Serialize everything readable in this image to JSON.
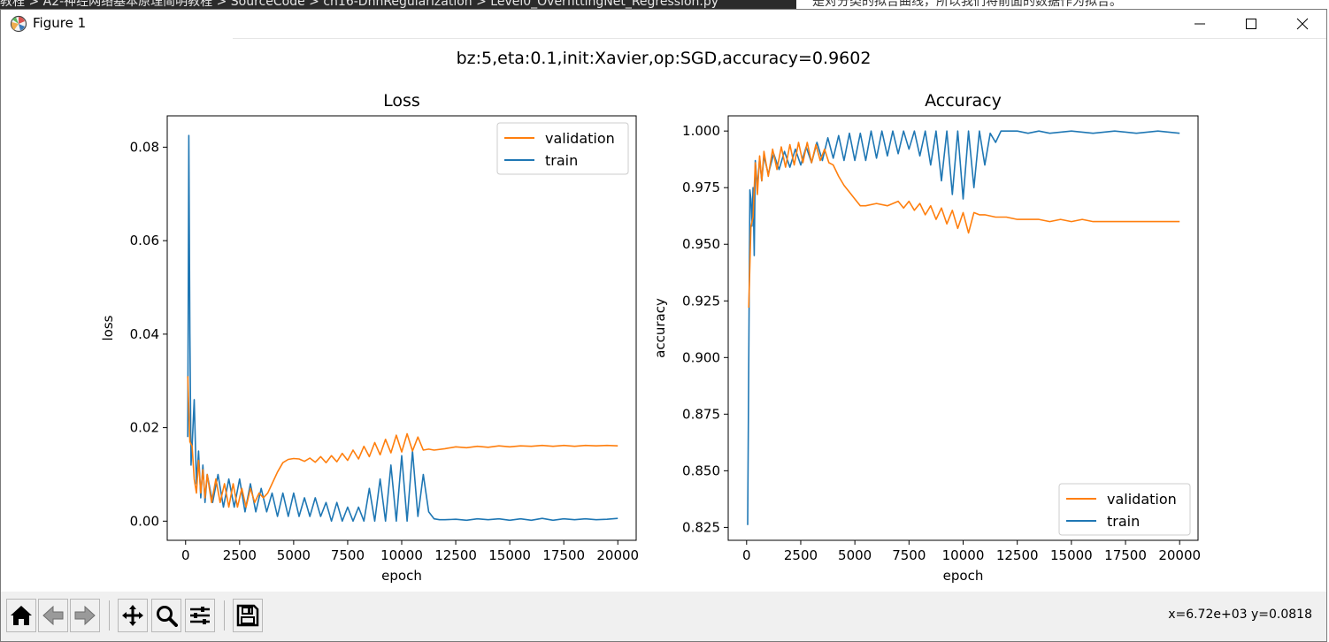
{
  "background": {
    "breadcrumb": "教程 > A2-神经网络基本原理简明教程 > SourceCode > ch16-DnnRegularization > Level0_OverfittingNet_Regression.py",
    "doc_text": "是对分类的拟合曲线，所以我们将前面的数据作为拟合。"
  },
  "window": {
    "title": "Figure 1",
    "controls": {
      "minimize": "minimize-icon",
      "maximize": "maximize-icon",
      "close": "close-icon"
    }
  },
  "figure": {
    "suptitle": "bz:5,eta:0.1,init:Xavier,op:SGD,accuracy=0.9602"
  },
  "toolbar": {
    "buttons": [
      "home-icon",
      "back-arrow-icon",
      "forward-arrow-icon",
      "pan-icon",
      "zoom-icon",
      "configure-subplots-icon",
      "save-icon"
    ],
    "coords": "x=6.72e+03 y=0.0818"
  },
  "colors": {
    "validation": "#ff7f0e",
    "train": "#1f77b4"
  },
  "chart_data": [
    {
      "type": "line",
      "title": "Loss",
      "xlabel": "epoch",
      "ylabel": "loss",
      "xlim": [
        -850,
        20850
      ],
      "ylim": [
        -0.0041,
        0.0867
      ],
      "xticks": [
        0,
        2500,
        5000,
        7500,
        10000,
        12500,
        15000,
        17500,
        20000
      ],
      "yticks": [
        0.0,
        0.02,
        0.04,
        0.06,
        0.08
      ],
      "ytick_labels": [
        "0.00",
        "0.02",
        "0.04",
        "0.06",
        "0.08"
      ],
      "legend": {
        "position": "upper right",
        "entries": [
          "validation",
          "train"
        ]
      },
      "series": [
        {
          "name": "validation",
          "x": [
            100,
            200,
            300,
            400,
            500,
            600,
            700,
            800,
            900,
            1000,
            1200,
            1400,
            1600,
            1800,
            2000,
            2200,
            2400,
            2600,
            2800,
            3000,
            3200,
            3400,
            3600,
            3800,
            4000,
            4250,
            4500,
            4750,
            5000,
            5250,
            5500,
            5750,
            6000,
            6250,
            6500,
            6750,
            7000,
            7250,
            7500,
            7750,
            8000,
            8250,
            8500,
            8750,
            9000,
            9250,
            9500,
            9750,
            10000,
            10250,
            10500,
            10750,
            11000,
            11250,
            11500,
            12000,
            12500,
            13000,
            13500,
            14000,
            14500,
            15000,
            15500,
            16000,
            16500,
            17000,
            17500,
            18000,
            18500,
            19000,
            19500,
            20000
          ],
          "y": [
            0.031,
            0.017,
            0.016,
            0.009,
            0.006,
            0.013,
            0.006,
            0.011,
            0.005,
            0.01,
            0.004,
            0.009,
            0.004,
            0.008,
            0.003,
            0.008,
            0.003,
            0.007,
            0.003,
            0.007,
            0.004,
            0.006,
            0.005,
            0.006,
            0.008,
            0.0105,
            0.0125,
            0.0132,
            0.0134,
            0.0133,
            0.0128,
            0.0135,
            0.0126,
            0.0138,
            0.0125,
            0.014,
            0.0127,
            0.0145,
            0.013,
            0.0152,
            0.0133,
            0.016,
            0.0138,
            0.0168,
            0.0142,
            0.0175,
            0.0146,
            0.0184,
            0.0148,
            0.0187,
            0.015,
            0.018,
            0.0152,
            0.0154,
            0.0152,
            0.0155,
            0.0159,
            0.0157,
            0.016,
            0.0158,
            0.0161,
            0.0159,
            0.0161,
            0.016,
            0.0162,
            0.016,
            0.0162,
            0.016,
            0.0162,
            0.0161,
            0.0162,
            0.0161
          ]
        },
        {
          "name": "train",
          "x": [
            100,
            150,
            200,
            250,
            300,
            400,
            500,
            600,
            700,
            800,
            900,
            1000,
            1250,
            1500,
            1750,
            2000,
            2250,
            2500,
            2750,
            3000,
            3250,
            3500,
            3750,
            4000,
            4250,
            4500,
            4750,
            5000,
            5250,
            5500,
            5750,
            6000,
            6250,
            6500,
            6750,
            7000,
            7250,
            7500,
            7750,
            8000,
            8250,
            8500,
            8750,
            9000,
            9250,
            9500,
            9750,
            10000,
            10250,
            10500,
            10750,
            11000,
            11250,
            11500,
            11750,
            12000,
            12500,
            13000,
            13500,
            14000,
            14500,
            15000,
            15500,
            16000,
            16500,
            17000,
            17500,
            18000,
            18500,
            19000,
            19500,
            20000
          ],
          "y": [
            0.018,
            0.0825,
            0.04,
            0.012,
            0.016,
            0.026,
            0.008,
            0.015,
            0.005,
            0.012,
            0.004,
            0.01,
            0.004,
            0.01,
            0.003,
            0.009,
            0.003,
            0.009,
            0.002,
            0.008,
            0.002,
            0.007,
            0.002,
            0.006,
            0.001,
            0.006,
            0.001,
            0.006,
            0.001,
            0.005,
            0.001,
            0.005,
            0.001,
            0.004,
            0.0,
            0.004,
            0.0,
            0.003,
            0.0,
            0.003,
            0.0,
            0.007,
            0.0,
            0.009,
            0.0,
            0.012,
            0.0,
            0.014,
            0.0,
            0.015,
            0.001,
            0.01,
            0.002,
            0.0005,
            0.0003,
            0.0003,
            0.0004,
            0.0002,
            0.0005,
            0.0003,
            0.0005,
            0.0002,
            0.0005,
            0.0002,
            0.0006,
            0.0002,
            0.0005,
            0.0003,
            0.0005,
            0.0003,
            0.0004,
            0.0006
          ]
        }
      ]
    },
    {
      "type": "line",
      "title": "Accuracy",
      "xlabel": "epoch",
      "ylabel": "accuracy",
      "xlim": [
        -850,
        20850
      ],
      "ylim": [
        0.8193,
        1.0067
      ],
      "xticks": [
        0,
        2500,
        5000,
        7500,
        10000,
        12500,
        15000,
        17500,
        20000
      ],
      "yticks": [
        0.825,
        0.85,
        0.875,
        0.9,
        0.925,
        0.95,
        0.975,
        1.0
      ],
      "ytick_labels": [
        "0.825",
        "0.850",
        "0.875",
        "0.900",
        "0.925",
        "0.950",
        "0.975",
        "1.000"
      ],
      "legend": {
        "position": "lower right",
        "entries": [
          "validation",
          "train"
        ]
      },
      "series": [
        {
          "name": "validation",
          "x": [
            100,
            200,
            300,
            400,
            500,
            600,
            700,
            800,
            1000,
            1200,
            1400,
            1600,
            1800,
            2000,
            2200,
            2400,
            2600,
            2800,
            3000,
            3200,
            3400,
            3600,
            3800,
            4000,
            4250,
            4500,
            4750,
            5000,
            5250,
            5500,
            6000,
            6500,
            7000,
            7250,
            7500,
            7750,
            8000,
            8250,
            8500,
            8750,
            9000,
            9250,
            9500,
            9750,
            10000,
            10250,
            10500,
            10750,
            11000,
            11500,
            12000,
            12500,
            13000,
            13500,
            14000,
            14500,
            15000,
            15500,
            16000,
            17000,
            18000,
            19000,
            20000
          ],
          "y": [
            0.922,
            0.958,
            0.962,
            0.986,
            0.972,
            0.989,
            0.978,
            0.991,
            0.98,
            0.992,
            0.983,
            0.993,
            0.984,
            0.994,
            0.985,
            0.995,
            0.986,
            0.995,
            0.986,
            0.994,
            0.987,
            0.992,
            0.986,
            0.985,
            0.98,
            0.976,
            0.973,
            0.97,
            0.967,
            0.967,
            0.968,
            0.967,
            0.969,
            0.966,
            0.969,
            0.965,
            0.968,
            0.963,
            0.967,
            0.961,
            0.966,
            0.959,
            0.965,
            0.957,
            0.964,
            0.955,
            0.964,
            0.963,
            0.963,
            0.962,
            0.962,
            0.961,
            0.961,
            0.961,
            0.96,
            0.961,
            0.96,
            0.961,
            0.96,
            0.96,
            0.96,
            0.96,
            0.96
          ]
        },
        {
          "name": "train",
          "x": [
            50,
            150,
            200,
            250,
            300,
            350,
            400,
            500,
            600,
            700,
            800,
            1000,
            1250,
            1500,
            1750,
            2000,
            2250,
            2500,
            2750,
            3000,
            3250,
            3500,
            3750,
            4000,
            4250,
            4500,
            4750,
            5000,
            5250,
            5500,
            5750,
            6000,
            6250,
            6500,
            6750,
            7000,
            7250,
            7500,
            7750,
            8000,
            8250,
            8500,
            8750,
            9000,
            9250,
            9500,
            9750,
            10000,
            10250,
            10500,
            10750,
            11000,
            11250,
            11500,
            11750,
            12000,
            12500,
            13000,
            13500,
            14000,
            15000,
            16000,
            17000,
            18000,
            19000,
            20000
          ],
          "y": [
            0.826,
            0.974,
            0.97,
            0.958,
            0.975,
            0.945,
            0.987,
            0.975,
            0.988,
            0.978,
            0.989,
            0.981,
            0.99,
            0.983,
            0.991,
            0.984,
            0.992,
            0.985,
            0.993,
            0.986,
            0.995,
            0.987,
            0.997,
            0.988,
            0.998,
            0.987,
            0.999,
            0.987,
            0.999,
            0.987,
            1.0,
            0.988,
            1.0,
            0.989,
            1.0,
            0.99,
            1.0,
            0.992,
            1.0,
            0.989,
            1.0,
            0.985,
            1.0,
            0.978,
            1.0,
            0.972,
            1.0,
            0.97,
            1.0,
            0.975,
            1.0,
            0.985,
            0.999,
            0.995,
            1.0,
            1.0,
            1.0,
            0.999,
            1.0,
            0.999,
            1.0,
            0.999,
            1.0,
            0.999,
            1.0,
            0.999
          ]
        }
      ]
    }
  ]
}
